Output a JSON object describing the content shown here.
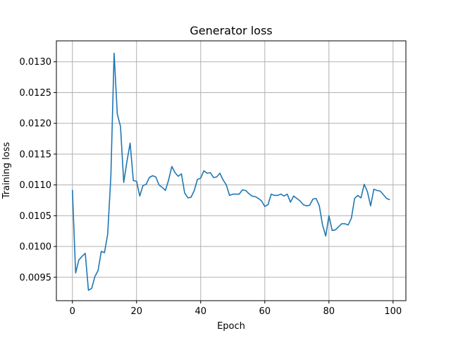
{
  "chart_data": {
    "type": "line",
    "title": "Generator loss",
    "xlabel": "Epoch",
    "ylabel": "Training loss",
    "xlim": [
      -5,
      104
    ],
    "ylim": [
      0.00912,
      0.01334
    ],
    "grid": true,
    "x_ticks": [
      0,
      20,
      40,
      60,
      80,
      100
    ],
    "x_tick_labels": [
      "0",
      "20",
      "40",
      "60",
      "80",
      "100"
    ],
    "y_ticks": [
      0.0095,
      0.01,
      0.0105,
      0.011,
      0.0115,
      0.012,
      0.0125,
      0.013
    ],
    "y_tick_labels": [
      "0.0095",
      "0.0100",
      "0.0105",
      "0.0110",
      "0.0115",
      "0.0120",
      "0.0125",
      "0.0130"
    ],
    "series": [
      {
        "color": "#1f77b4",
        "x": [
          0,
          1,
          2,
          3,
          4,
          5,
          6,
          7,
          8,
          9,
          10,
          11,
          12,
          13,
          14,
          15,
          16,
          17,
          18,
          19,
          20,
          21,
          22,
          23,
          24,
          25,
          26,
          27,
          28,
          29,
          30,
          31,
          32,
          33,
          34,
          35,
          36,
          37,
          38,
          39,
          40,
          41,
          42,
          43,
          44,
          45,
          46,
          47,
          48,
          49,
          50,
          51,
          52,
          53,
          54,
          55,
          56,
          57,
          58,
          59,
          60,
          61,
          62,
          63,
          64,
          65,
          66,
          67,
          68,
          69,
          70,
          71,
          72,
          73,
          74,
          75,
          76,
          77,
          78,
          79,
          80,
          81,
          82,
          83,
          84,
          85,
          86,
          87,
          88,
          89,
          90,
          91,
          92,
          93,
          94,
          95,
          96,
          97,
          98,
          99
        ],
        "y": [
          0.01092,
          0.00957,
          0.00978,
          0.00984,
          0.00989,
          0.00929,
          0.00932,
          0.00951,
          0.00961,
          0.00992,
          0.0099,
          0.0102,
          0.01115,
          0.01314,
          0.01215,
          0.01195,
          0.01104,
          0.01138,
          0.01168,
          0.01107,
          0.01106,
          0.01082,
          0.01099,
          0.01101,
          0.01112,
          0.01115,
          0.01113,
          0.011,
          0.01096,
          0.01091,
          0.01108,
          0.0113,
          0.0112,
          0.01114,
          0.01118,
          0.01087,
          0.01079,
          0.0108,
          0.01091,
          0.01109,
          0.01111,
          0.01123,
          0.01119,
          0.0112,
          0.01112,
          0.01113,
          0.01119,
          0.01108,
          0.011,
          0.01083,
          0.01085,
          0.01085,
          0.01085,
          0.01092,
          0.01091,
          0.01086,
          0.01082,
          0.01081,
          0.01078,
          0.01074,
          0.01065,
          0.01068,
          0.01085,
          0.01083,
          0.01083,
          0.01085,
          0.01082,
          0.01085,
          0.01072,
          0.01082,
          0.01078,
          0.01074,
          0.01068,
          0.01066,
          0.01067,
          0.01077,
          0.01078,
          0.01066,
          0.01035,
          0.01017,
          0.0105,
          0.01026,
          0.01027,
          0.01032,
          0.01037,
          0.01037,
          0.01035,
          0.01046,
          0.01078,
          0.01083,
          0.01079,
          0.01101,
          0.01089,
          0.01066,
          0.01093,
          0.01091,
          0.0109,
          0.01084,
          0.01078,
          0.01076
        ]
      }
    ]
  }
}
